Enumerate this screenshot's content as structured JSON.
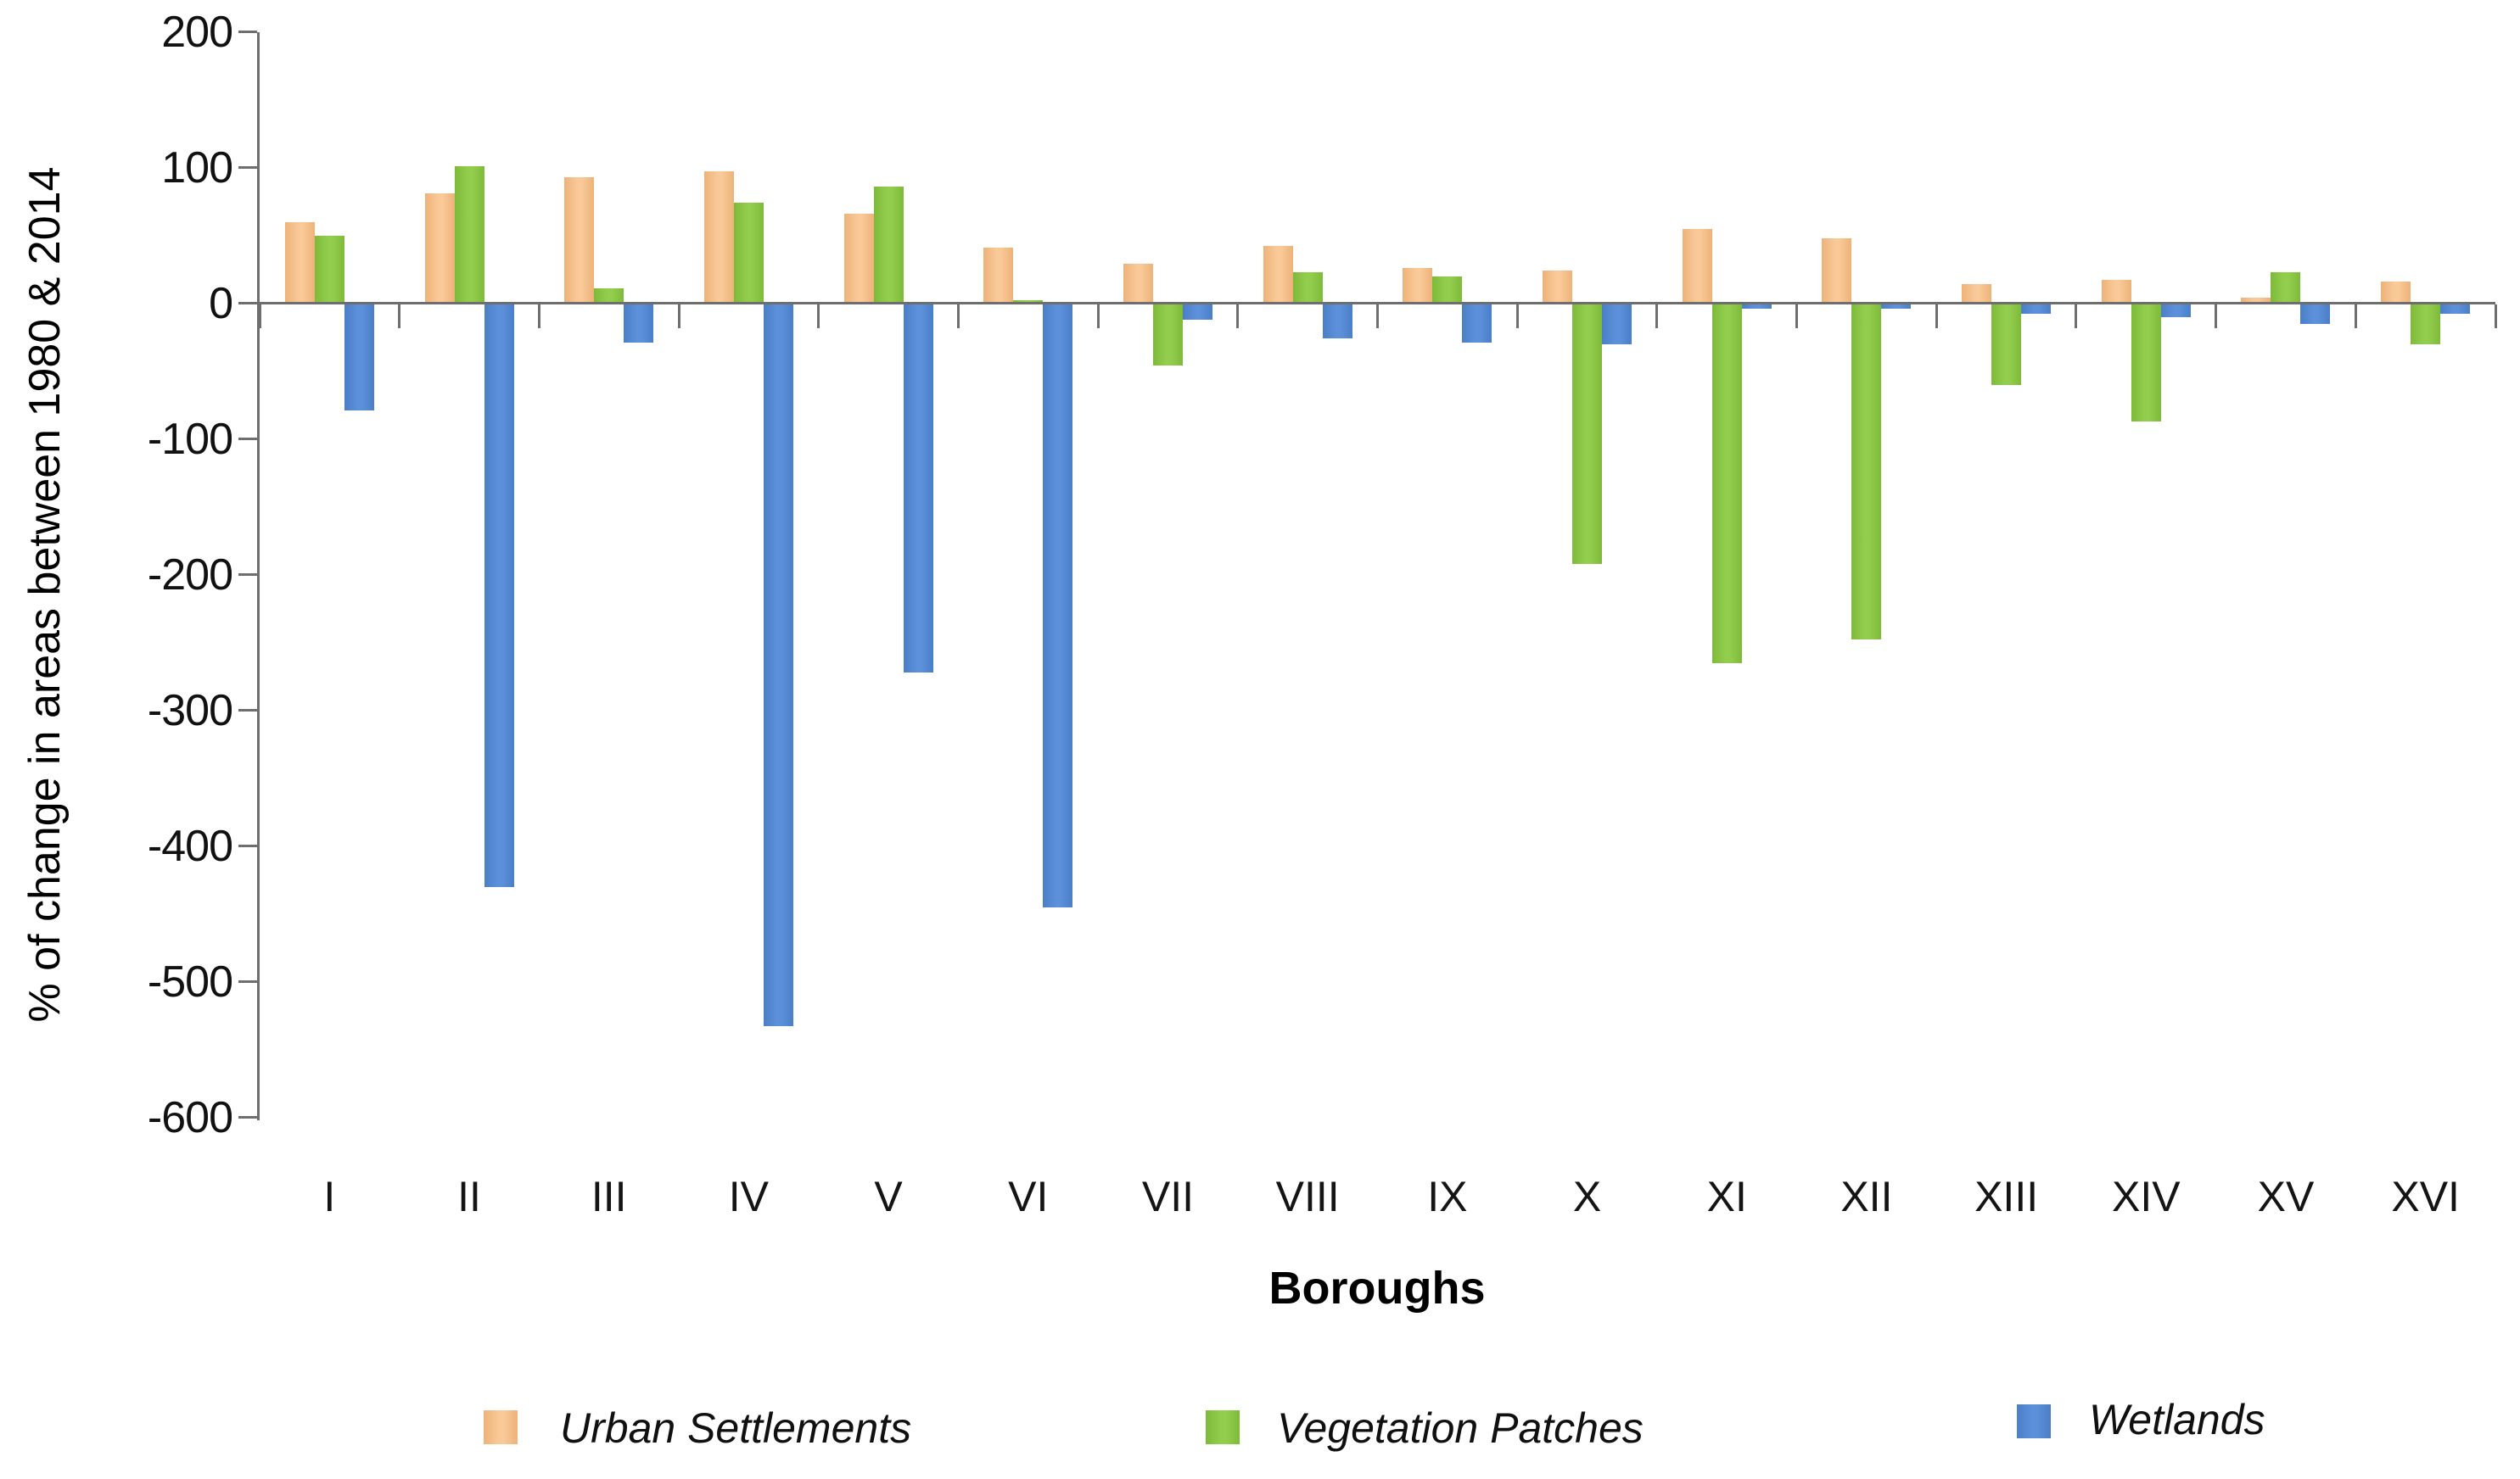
{
  "chart_data": {
    "type": "bar",
    "title": "",
    "xlabel": "Boroughs",
    "ylabel": "% of change in areas between 1980 & 2014",
    "categories": [
      "I",
      "II",
      "III",
      "IV",
      "V",
      "VI",
      "VII",
      "VIII",
      "IX",
      "X",
      "XI",
      "XII",
      "XIII",
      "XIV",
      "XV",
      "XVI"
    ],
    "series": [
      {
        "name": "Urban Settlements",
        "color": "#F5C08C",
        "values": [
          60,
          81,
          93,
          97,
          66,
          41,
          29,
          42,
          26,
          24,
          55,
          48,
          14,
          17,
          4,
          16
        ]
      },
      {
        "name": "Vegetation Patches",
        "color": "#8CC640",
        "values": [
          50,
          101,
          11,
          74,
          86,
          2,
          -46,
          23,
          20,
          -192,
          -265,
          -248,
          -60,
          -87,
          23,
          -30
        ]
      },
      {
        "name": "Wetlands",
        "color": "#5588D2",
        "values": [
          -79,
          -430,
          -29,
          -533,
          -272,
          -445,
          -12,
          -26,
          -29,
          -30,
          -4,
          -4,
          -8,
          -10,
          -15,
          -8
        ]
      }
    ],
    "ylim": [
      -600,
      200
    ],
    "yticks": [
      200,
      100,
      0,
      -100,
      -200,
      -300,
      -400,
      -500,
      -600
    ],
    "grid": false,
    "legend_position": "bottom"
  }
}
